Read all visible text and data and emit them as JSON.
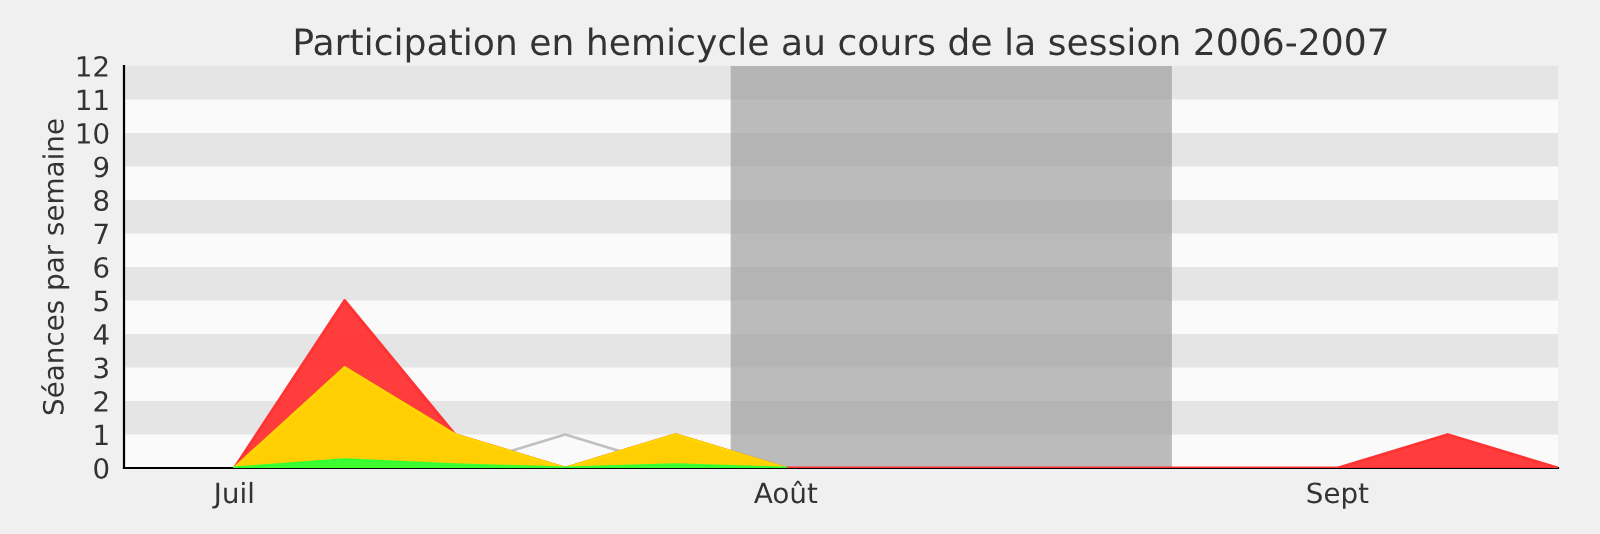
{
  "chart_data": {
    "type": "area",
    "title": "Participation en hemicycle au cours de la session 2006-2007",
    "ylabel": "Séances par semaine",
    "categories": [
      null,
      "Juil",
      null,
      null,
      null,
      null,
      "Août",
      null,
      null,
      null,
      null,
      "Sept",
      null,
      null
    ],
    "series": [
      {
        "type": "line",
        "color": "#c0c0c0",
        "values": [
          null,
          null,
          null,
          0,
          1,
          0,
          null,
          null,
          null,
          null,
          null,
          null,
          null,
          null
        ]
      },
      {
        "color": "#ff3333",
        "values": [
          null,
          0,
          5,
          1,
          0,
          1,
          0,
          0,
          0,
          0,
          0,
          0,
          1,
          0
        ]
      },
      {
        "color": "#ffd700",
        "values": [
          null,
          0,
          3,
          1,
          0,
          1,
          0,
          null,
          null,
          null,
          null,
          null,
          null,
          null
        ]
      },
      {
        "color": "#33ff33",
        "values": [
          null,
          0,
          0.25,
          0.1,
          0,
          0.1,
          0,
          null,
          null,
          null,
          null,
          null,
          null,
          null
        ]
      }
    ],
    "ylim": [
      0,
      12
    ],
    "yticks": [
      0,
      1,
      2,
      3,
      4,
      5,
      6,
      7,
      8,
      9,
      10,
      11,
      12
    ],
    "legend": false
  }
}
